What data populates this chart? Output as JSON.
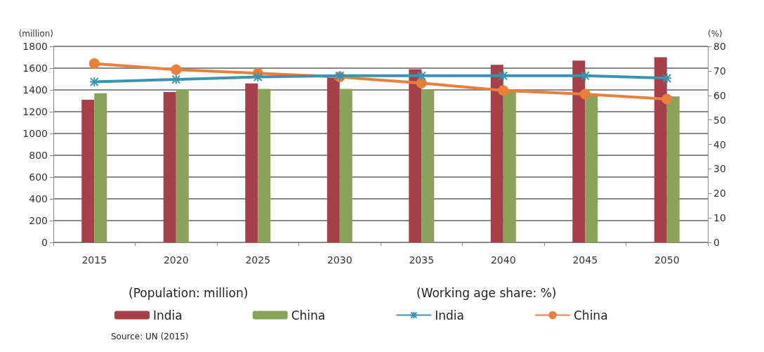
{
  "chart_data": {
    "type": "bar",
    "ylabel": "(million)",
    "y2label": "(%)",
    "categories": [
      "2015",
      "2020",
      "2025",
      "2030",
      "2035",
      "2040",
      "2045",
      "2050"
    ],
    "series": [
      {
        "name": "India",
        "color": "#a5404a",
        "values": [
          1310,
          1380,
          1460,
          1530,
          1590,
          1630,
          1670,
          1700
        ]
      },
      {
        "name": "China",
        "color": "#89a35a",
        "values": [
          1370,
          1400,
          1410,
          1410,
          1400,
          1380,
          1350,
          1340
        ]
      },
      {
        "name": "India",
        "type": "line",
        "axis": "y2",
        "marker": "cross",
        "color": "#3a94b0",
        "values": [
          65.5,
          66.5,
          67.5,
          68,
          68,
          68,
          68,
          67
        ]
      },
      {
        "name": "China",
        "type": "line",
        "axis": "y2",
        "marker": "circle",
        "color": "#e8803a",
        "values": [
          73,
          70.5,
          69,
          67.5,
          65,
          62,
          60.5,
          58.5
        ]
      }
    ],
    "ylim": [
      0,
      1800
    ],
    "yticks": [
      0,
      200,
      400,
      600,
      800,
      1000,
      1200,
      1400,
      1600,
      1800
    ],
    "y2lim": [
      0,
      80
    ],
    "y2ticks": [
      0,
      10,
      20,
      30,
      40,
      50,
      60,
      70,
      80
    ],
    "grid": "y",
    "legend": "bottom",
    "annotations": [
      "(Population: million)",
      "(Working age share: %)",
      "Source: UN (2015)"
    ]
  }
}
